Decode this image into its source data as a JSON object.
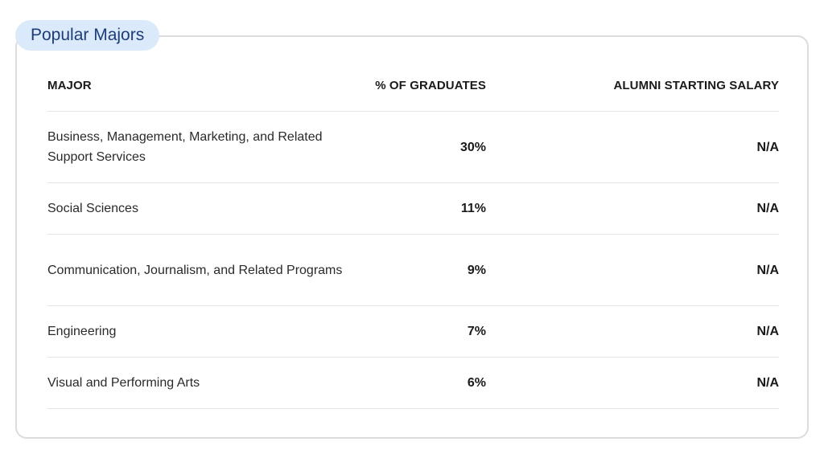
{
  "section": {
    "title": "Popular Majors"
  },
  "table": {
    "headers": {
      "major": "MAJOR",
      "percent": "% OF GRADUATES",
      "salary": "ALUMNI STARTING SALARY"
    },
    "rows": [
      {
        "major": "Business, Management, Marketing, and Related Support Services",
        "percent": "30%",
        "salary": "N/A"
      },
      {
        "major": "Social Sciences",
        "percent": "11%",
        "salary": "N/A"
      },
      {
        "major": "Communication, Journalism, and Related Programs",
        "percent": "9%",
        "salary": "N/A"
      },
      {
        "major": "Engineering",
        "percent": "7%",
        "salary": "N/A"
      },
      {
        "major": "Visual and Performing Arts",
        "percent": "6%",
        "salary": "N/A"
      }
    ]
  },
  "colors": {
    "pill_background": "#dbeafb",
    "pill_text": "#1d3c78",
    "card_border": "#dcdcdc",
    "row_divider": "#e6e6e6"
  }
}
